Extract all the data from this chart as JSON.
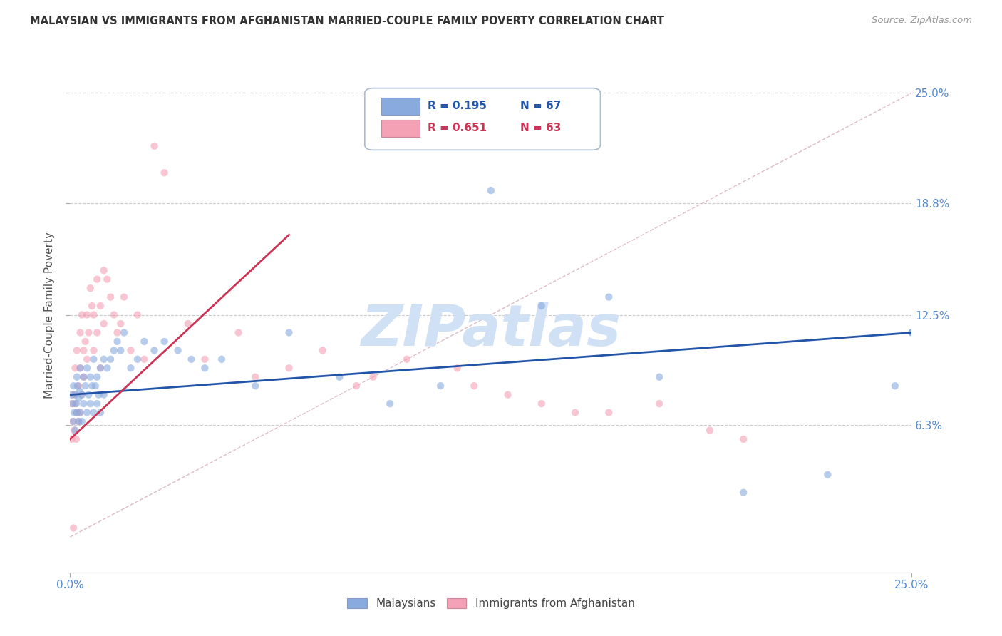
{
  "title": "MALAYSIAN VS IMMIGRANTS FROM AFGHANISTAN MARRIED-COUPLE FAMILY POVERTY CORRELATION CHART",
  "source": "Source: ZipAtlas.com",
  "ylabel": "Married-Couple Family Poverty",
  "xticklabels": [
    "0.0%",
    "25.0%"
  ],
  "yticklabels": [
    "6.3%",
    "12.5%",
    "18.8%",
    "25.0%"
  ],
  "xlim": [
    0,
    25
  ],
  "ylim": [
    -2,
    27
  ],
  "ytick_positions": [
    6.3,
    12.5,
    18.8,
    25.0
  ],
  "xtick_positions": [
    0,
    25
  ],
  "legend_r_blue": "R = 0.195",
  "legend_n_blue": "N = 67",
  "legend_r_pink": "R = 0.651",
  "legend_n_pink": "N = 63",
  "legend_label_blue": "Malaysians",
  "legend_label_pink": "Immigrants from Afghanistan",
  "dot_color_blue": "#88aadd",
  "dot_color_pink": "#f4a0b5",
  "line_color_blue": "#2255aa",
  "line_color_pink": "#cc3355",
  "dot_alpha": 0.6,
  "dot_size": 55,
  "watermark": "ZIPatlas",
  "watermark_color": "#d0e0f5",
  "background_color": "#ffffff",
  "grid_color": "#cccccc",
  "title_color": "#333333",
  "axis_label_color": "#5588cc",
  "blue_line_x": [
    0,
    25
  ],
  "blue_line_y": [
    8.0,
    11.5
  ],
  "pink_line_x": [
    0,
    6.5
  ],
  "pink_line_y": [
    5.5,
    17.0
  ],
  "diag_line_color": "#ddbbcc",
  "blue_pts_x": [
    0.05,
    0.08,
    0.1,
    0.1,
    0.12,
    0.15,
    0.15,
    0.18,
    0.2,
    0.2,
    0.22,
    0.25,
    0.25,
    0.28,
    0.3,
    0.3,
    0.35,
    0.35,
    0.4,
    0.4,
    0.45,
    0.5,
    0.5,
    0.55,
    0.6,
    0.6,
    0.65,
    0.7,
    0.7,
    0.75,
    0.8,
    0.8,
    0.85,
    0.9,
    0.9,
    1.0,
    1.0,
    1.1,
    1.2,
    1.3,
    1.4,
    1.5,
    1.6,
    1.8,
    2.0,
    2.2,
    2.5,
    2.8,
    3.2,
    3.6,
    4.0,
    4.5,
    5.5,
    6.5,
    8.0,
    9.5,
    11.0,
    12.5,
    14.0,
    16.0,
    17.5,
    20.0,
    22.5,
    24.5,
    25.0,
    25.0,
    25.0
  ],
  "blue_pts_y": [
    8.0,
    7.5,
    8.5,
    6.5,
    7.0,
    8.0,
    6.0,
    7.5,
    7.0,
    9.0,
    8.5,
    6.5,
    7.8,
    8.2,
    7.0,
    9.5,
    8.0,
    6.5,
    9.0,
    7.5,
    8.5,
    7.0,
    9.5,
    8.0,
    7.5,
    9.0,
    8.5,
    7.0,
    10.0,
    8.5,
    9.0,
    7.5,
    8.0,
    9.5,
    7.0,
    10.0,
    8.0,
    9.5,
    10.0,
    10.5,
    11.0,
    10.5,
    11.5,
    9.5,
    10.0,
    11.0,
    10.5,
    11.0,
    10.5,
    10.0,
    9.5,
    10.0,
    8.5,
    11.5,
    9.0,
    7.5,
    8.5,
    19.5,
    13.0,
    13.5,
    9.0,
    2.5,
    3.5,
    8.5,
    11.5,
    11.5,
    11.5
  ],
  "pink_pts_x": [
    0.05,
    0.05,
    0.08,
    0.1,
    0.1,
    0.12,
    0.15,
    0.15,
    0.18,
    0.2,
    0.2,
    0.25,
    0.25,
    0.28,
    0.3,
    0.3,
    0.35,
    0.35,
    0.4,
    0.4,
    0.45,
    0.5,
    0.5,
    0.55,
    0.6,
    0.65,
    0.7,
    0.7,
    0.8,
    0.8,
    0.9,
    0.9,
    1.0,
    1.0,
    1.1,
    1.2,
    1.3,
    1.4,
    1.5,
    1.6,
    1.8,
    2.0,
    2.2,
    2.5,
    2.8,
    3.5,
    4.0,
    5.0,
    5.5,
    6.5,
    7.5,
    8.5,
    9.0,
    10.0,
    11.5,
    12.0,
    13.0,
    14.0,
    15.0,
    16.0,
    17.5,
    19.0,
    20.0
  ],
  "pink_pts_y": [
    5.5,
    7.5,
    6.5,
    0.5,
    8.0,
    6.0,
    7.5,
    9.5,
    5.5,
    7.0,
    10.5,
    6.5,
    8.5,
    7.0,
    9.5,
    11.5,
    8.0,
    12.5,
    10.5,
    9.0,
    11.0,
    10.0,
    12.5,
    11.5,
    14.0,
    13.0,
    12.5,
    10.5,
    14.5,
    11.5,
    13.0,
    9.5,
    12.0,
    15.0,
    14.5,
    13.5,
    12.5,
    11.5,
    12.0,
    13.5,
    10.5,
    12.5,
    10.0,
    22.0,
    20.5,
    12.0,
    10.0,
    11.5,
    9.0,
    9.5,
    10.5,
    8.5,
    9.0,
    10.0,
    9.5,
    8.5,
    8.0,
    7.5,
    7.0,
    7.0,
    7.5,
    6.0,
    5.5
  ]
}
